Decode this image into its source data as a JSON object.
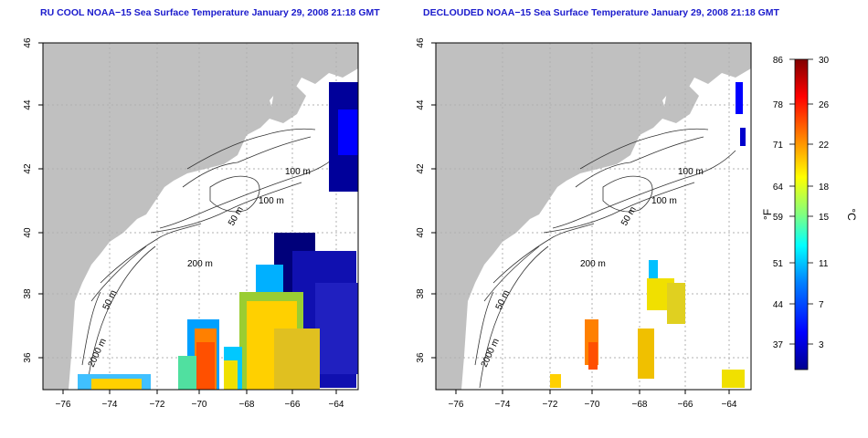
{
  "titles": {
    "left": "RU COOL NOAA−15 Sea Surface Temperature January 29, 2008 21:18 GMT",
    "right": "DECLOUDED NOAA−15 Sea Surface Temperature January 29, 2008 21:18 GMT"
  },
  "axes": {
    "x_ticks": [
      "−76",
      "−74",
      "−72",
      "−70",
      "−68",
      "−66",
      "−64"
    ],
    "y_ticks": [
      "36",
      "38",
      "40",
      "42",
      "44",
      "46"
    ]
  },
  "contour_labels": [
    "100 m",
    "100 m",
    "50 m",
    "200 m",
    "50 m",
    "2000 m"
  ],
  "colorbar": {
    "f_labels": [
      "86",
      "78",
      "71",
      "64",
      "59",
      "51",
      "44",
      "37"
    ],
    "c_labels": [
      "30",
      "26",
      "22",
      "18",
      "15",
      "11",
      "7",
      "3"
    ],
    "f_unit": "°F",
    "c_unit": "°C",
    "colors": [
      "#00008f",
      "#0000ff",
      "#0080ff",
      "#00ffff",
      "#80ff80",
      "#ffff00",
      "#ff8000",
      "#ff0000",
      "#800000"
    ]
  },
  "colors": {
    "land": "#c0c0c0",
    "ocean": "#ffffff",
    "title": "#1a1acc",
    "grid": "#b0b0b0"
  }
}
